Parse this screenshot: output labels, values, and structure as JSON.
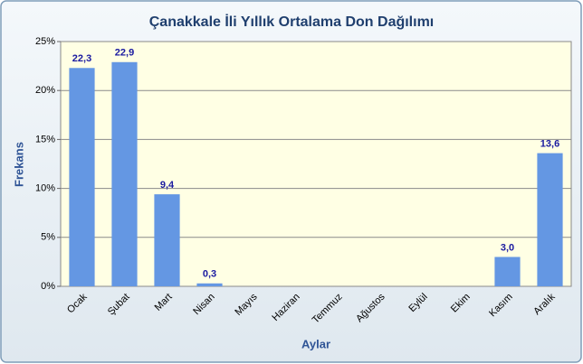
{
  "chart_data": {
    "type": "bar",
    "title": "Çanakkale İli Yıllık Ortalama Don Dağılımı",
    "x_label": "Aylar",
    "y_label": "Frekans",
    "categories": [
      "Ocak",
      "Şubat",
      "Mart",
      "Nisan",
      "Mayıs",
      "Haziran",
      "Temmuz",
      "Ağustos",
      "Eylül",
      "Ekim",
      "Kasım",
      "Aralık"
    ],
    "values": [
      22.3,
      22.9,
      9.4,
      0.3,
      0,
      0,
      0,
      0,
      0,
      0,
      3.0,
      13.6
    ],
    "value_labels": [
      "22,3",
      "22,9",
      "9,4",
      "0,3",
      null,
      null,
      null,
      null,
      null,
      null,
      "3,0",
      "13,6"
    ],
    "color": "#6497e3",
    "ylim": [
      0,
      25
    ],
    "yticks": [
      {
        "value": 0,
        "label": "0%"
      },
      {
        "value": 5,
        "label": "5%"
      },
      {
        "value": 10,
        "label": "10%"
      },
      {
        "value": 15,
        "label": "15%"
      },
      {
        "value": 20,
        "label": "20%"
      },
      {
        "value": 25,
        "label": "25%"
      }
    ],
    "grid": true
  }
}
